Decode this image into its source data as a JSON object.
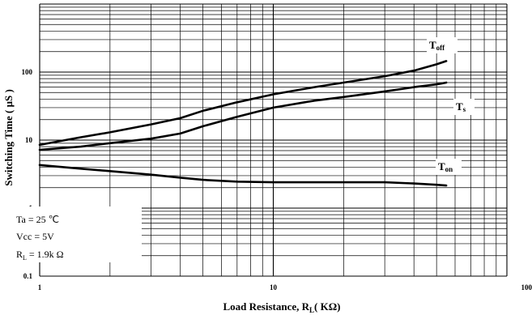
{
  "chart_data": {
    "type": "line",
    "xlabel_main": "Load Resistance, R",
    "xlabel_sub": "L",
    "xlabel_unit": "( KΩ)",
    "ylabel": "Switching Time ( μS )",
    "x_scale": "log",
    "y_scale": "log",
    "xlim": [
      1,
      100
    ],
    "ylim": [
      0.1,
      1000
    ],
    "x_ticks": [
      "1",
      "10",
      "100"
    ],
    "y_ticks": [
      "0.1",
      "1",
      "10",
      "100"
    ],
    "grid": true,
    "series": [
      {
        "name": "Toff",
        "label_main": "T",
        "label_sub": "off",
        "x": [
          1,
          1.5,
          2,
          3,
          4,
          5,
          7,
          10,
          15,
          20,
          30,
          40,
          50,
          55
        ],
        "y": [
          8.5,
          11,
          13,
          17,
          21,
          27,
          36,
          47,
          60,
          70,
          87,
          105,
          130,
          145
        ]
      },
      {
        "name": "Ts",
        "label_main": "T",
        "label_sub": "s",
        "x": [
          1,
          1.5,
          2,
          3,
          4,
          5,
          7,
          10,
          15,
          20,
          30,
          40,
          50,
          55
        ],
        "y": [
          7.2,
          8,
          9,
          10.5,
          12.5,
          16,
          22,
          30,
          38,
          43,
          52,
          60,
          66,
          70
        ]
      },
      {
        "name": "Ton",
        "label_main": "T",
        "label_sub": "on",
        "x": [
          1,
          1.5,
          2,
          3,
          4,
          5,
          7,
          10,
          15,
          20,
          30,
          40,
          50,
          55
        ],
        "y": [
          4.3,
          3.8,
          3.5,
          3.1,
          2.8,
          2.6,
          2.45,
          2.4,
          2.4,
          2.4,
          2.4,
          2.3,
          2.2,
          2.15
        ]
      }
    ],
    "conditions": [
      {
        "main": "Ta  = 25 ℃",
        "sub": "",
        "tail": ""
      },
      {
        "main": "Vcc = 5V",
        "sub": "",
        "tail": ""
      },
      {
        "main": "R",
        "sub": "L",
        "tail": " = 1.9k Ω"
      }
    ]
  }
}
